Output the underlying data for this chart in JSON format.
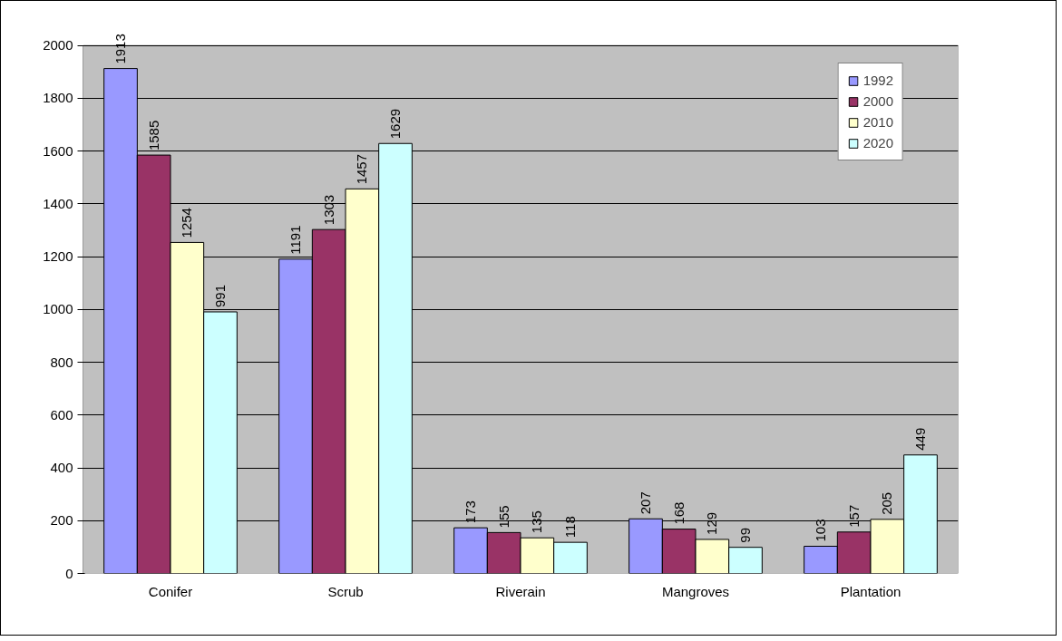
{
  "chart_data": {
    "type": "bar",
    "categories": [
      "Conifer",
      "Scrub",
      "Riverain",
      "Mangroves",
      "Plantation"
    ],
    "series": [
      {
        "name": "1992",
        "color": "#9999ff",
        "values": [
          1913,
          1191,
          173,
          207,
          103
        ]
      },
      {
        "name": "2000",
        "color": "#993366",
        "values": [
          1585,
          1303,
          155,
          168,
          157
        ]
      },
      {
        "name": "2010",
        "color": "#ffffcc",
        "values": [
          1254,
          1457,
          135,
          129,
          205
        ]
      },
      {
        "name": "2020",
        "color": "#ccffff",
        "values": [
          991,
          1629,
          118,
          99,
          449
        ]
      }
    ],
    "ylim": [
      0,
      2000
    ],
    "yticks": [
      0,
      200,
      400,
      600,
      800,
      1000,
      1200,
      1400,
      1600,
      1800,
      2000
    ],
    "grid": "y",
    "legend": "top right",
    "data_labels": true
  }
}
